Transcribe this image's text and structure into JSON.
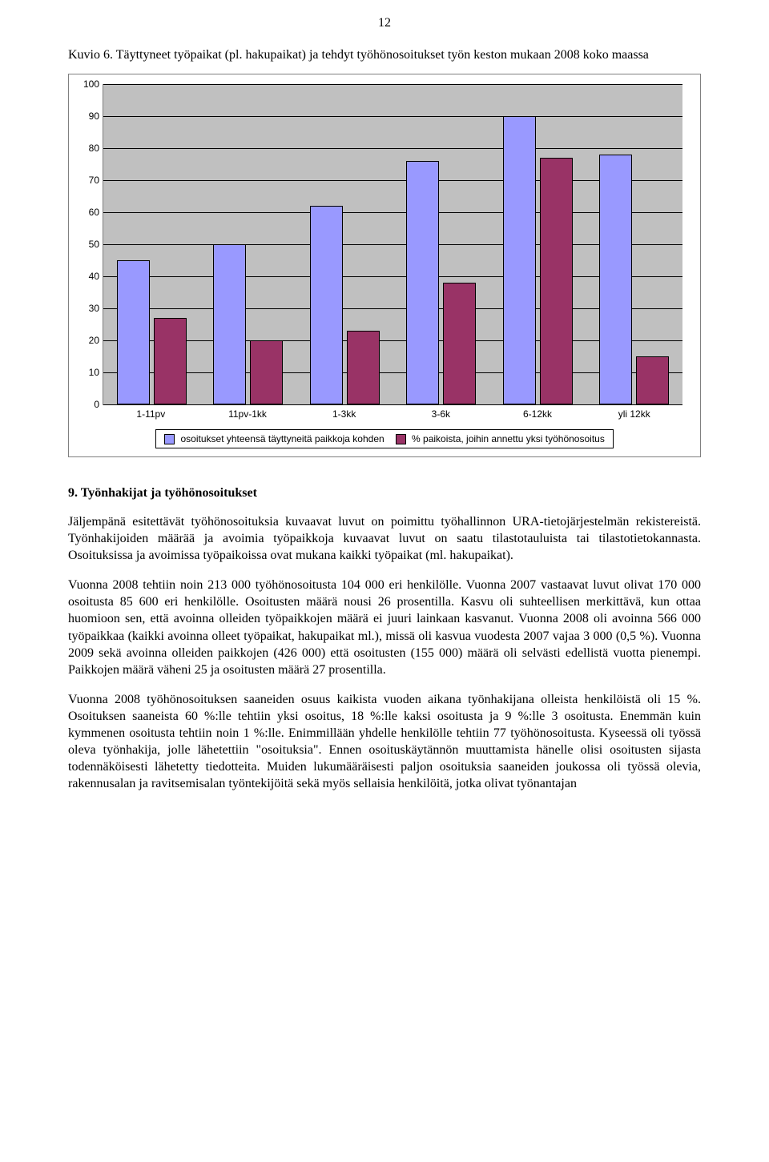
{
  "page_number": "12",
  "figure_title": "Kuvio 6. Täyttyneet työpaikat (pl. hakupaikat) ja tehdyt työhönosoitukset työn keston mukaan 2008 koko maassa",
  "chart": {
    "type": "bar",
    "background_color": "#c0c0c0",
    "grid_color": "#000000",
    "border_color": "#808080",
    "ylim": [
      0,
      100
    ],
    "ytick_step": 10,
    "yticks": [
      "0",
      "10",
      "20",
      "30",
      "40",
      "50",
      "60",
      "70",
      "80",
      "90",
      "100"
    ],
    "tick_fontsize": 12,
    "categories": [
      "1-11pv",
      "11pv-1kk",
      "1-3kk",
      "3-6k",
      "6-12kk",
      "yli 12kk"
    ],
    "series": [
      {
        "label": "osoitukset yhteensä täyttyneitä paikkoja kohden",
        "color": "#9999ff",
        "values": [
          45,
          50,
          62,
          76,
          90,
          78
        ]
      },
      {
        "label": "% paikoista, joihin annettu yksi työhönosoitus",
        "color": "#993366",
        "values": [
          27,
          20,
          23,
          38,
          77,
          15
        ]
      }
    ]
  },
  "section_heading": "9. Työnhakijat ja työhönosoitukset",
  "paragraphs": [
    "Jäljempänä esitettävät työhönosoituksia kuvaavat luvut on poimittu työhallinnon URA-tietojärjestelmän rekistereistä. Työnhakijoiden määrää ja avoimia työpaikkoja kuvaavat luvut on saatu tilastotauluista tai tilastotietokannasta. Osoituksissa ja avoimissa työpaikoissa ovat mukana kaikki työpaikat (ml. hakupaikat).",
    "Vuonna 2008 tehtiin noin 213 000 työhönosoitusta 104 000 eri henkilölle. Vuonna 2007 vastaavat luvut olivat 170 000 osoitusta 85 600 eri henkilölle. Osoitusten määrä nousi 26 prosentilla. Kasvu oli suhteellisen merkittävä, kun ottaa huomioon sen, että avoinna olleiden työpaikkojen määrä ei juuri lainkaan kasvanut. Vuonna 2008 oli avoinna 566 000 työpaikkaa (kaikki avoinna olleet työpaikat, hakupaikat ml.), missä oli kasvua vuodesta 2007 vajaa 3 000 (0,5 %). Vuonna 2009 sekä avoinna olleiden paikkojen (426 000) että osoitusten (155 000) määrä oli selvästi edellistä vuotta pienempi. Paikkojen määrä väheni 25 ja osoitusten määrä 27 prosentilla.",
    "Vuonna 2008 työhönosoituksen saaneiden osuus kaikista vuoden aikana työnhakijana olleista henkilöistä oli 15 %. Osoituksen saaneista 60 %:lle tehtiin yksi osoitus, 18 %:lle kaksi osoitusta ja 9 %:lle 3 osoitusta. Enemmän kuin kymmenen osoitusta tehtiin noin 1 %:lle. Enimmillään yhdelle henkilölle tehtiin 77 työhönosoitusta. Kyseessä oli työssä oleva työnhakija, jolle lähetettiin \"osoituksia\". Ennen osoituskäytännön muuttamista hänelle olisi osoitusten sijasta todennäköisesti lähetetty tiedotteita. Muiden lukumääräisesti paljon osoituksia saaneiden joukossa oli työssä olevia, rakennusalan ja ravitsemisalan työntekijöitä sekä myös sellaisia henkilöitä, jotka olivat työnantajan"
  ]
}
